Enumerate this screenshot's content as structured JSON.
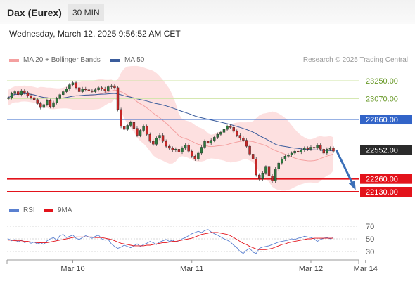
{
  "header": {
    "title": "Dax (Eurex)",
    "interval": "30 MIN"
  },
  "datetime": "Wednesday, March 12, 2025 9:56:52 AM CET",
  "copyright": "Research © 2025 Trading Central",
  "colors": {
    "bollinger_band": "#fde0e0",
    "ma20": "#f4a0a0",
    "ma50": "#3a5c9c",
    "bullish_candle": "#2d7a3e",
    "bearish_candle": "#c62828",
    "support": "#e3131b",
    "resistance_major": "#3264c8",
    "resistance_minor": "#cfe4a6",
    "arrow": "#3a6fb8",
    "rsi": "#5a80d0",
    "rsi_ma": "#e3131b"
  },
  "legend": {
    "price": [
      {
        "label": "MA 20 + Bollinger Bands",
        "color": "#f4a0a0"
      },
      {
        "label": "MA 50",
        "color": "#3a5c9c"
      }
    ],
    "rsi": [
      {
        "label": "RSI",
        "color": "#5a80d0"
      },
      {
        "label": "9MA",
        "color": "#e3131b"
      }
    ]
  },
  "chart_data": {
    "type": "candlestick",
    "ylim": [
      22060,
      23330
    ],
    "x_labels": [
      "Mar 10",
      "Mar 11",
      "Mar 12",
      "Mar 14"
    ],
    "levels": [
      {
        "value": 23250,
        "label": "23250.00",
        "kind": "resistance-minor"
      },
      {
        "value": 23070,
        "label": "23070.00",
        "kind": "resistance-minor"
      },
      {
        "value": 22860,
        "label": "22860.00",
        "kind": "resistance-major"
      },
      {
        "value": 22552,
        "label": "22552.00",
        "kind": "last-price"
      },
      {
        "value": 22260,
        "label": "22260.00",
        "kind": "support"
      },
      {
        "value": 22130,
        "label": "22130.00",
        "kind": "support"
      }
    ],
    "forecast_arrow": {
      "from": 22552,
      "to": 22130
    },
    "close": [
      23080,
      23120,
      23140,
      23110,
      23150,
      23130,
      23100,
      23080,
      23060,
      23020,
      22980,
      23010,
      23050,
      22990,
      23030,
      23070,
      23110,
      23140,
      23170,
      23210,
      23230,
      23180,
      23140,
      23170,
      23160,
      23150,
      23140,
      23160,
      23180,
      23170,
      23150,
      23190,
      23200,
      23180,
      22960,
      22790,
      22760,
      22800,
      22830,
      22770,
      22700,
      22750,
      22790,
      22710,
      22640,
      22610,
      22670,
      22700,
      22640,
      22590,
      22570,
      22550,
      22560,
      22530,
      22570,
      22600,
      22540,
      22490,
      22460,
      22520,
      22580,
      22640,
      22620,
      22650,
      22680,
      22710,
      22730,
      22760,
      22790,
      22780,
      22740,
      22700,
      22670,
      22650,
      22590,
      22510,
      22460,
      22300,
      22260,
      22320,
      22380,
      22290,
      22240,
      22360,
      22420,
      22460,
      22490,
      22500,
      22520,
      22540,
      22530,
      22550,
      22570,
      22560,
      22580,
      22570,
      22600,
      22560,
      22520,
      22560,
      22570,
      22540
    ],
    "rsi": {
      "ticks": [
        70,
        50,
        30
      ],
      "ylim": [
        20,
        80
      ],
      "values": [
        50,
        47,
        49,
        45,
        48,
        44,
        46,
        43,
        45,
        42,
        44,
        41,
        47,
        50,
        52,
        48,
        55,
        57,
        52,
        54,
        56,
        51,
        49,
        52,
        55,
        53,
        51,
        54,
        56,
        50,
        48,
        49,
        42,
        38,
        35,
        37,
        40,
        38,
        36,
        39,
        42,
        38,
        41,
        43,
        46,
        44,
        41,
        45,
        47,
        49,
        46,
        48,
        45,
        47,
        50,
        52,
        55,
        58,
        60,
        62,
        60,
        63,
        65,
        61,
        58,
        56,
        53,
        50,
        48,
        45,
        40,
        36,
        30,
        27,
        32,
        35,
        29,
        27,
        35,
        37,
        38,
        39,
        41,
        43,
        45,
        46,
        47,
        48,
        50,
        49,
        51,
        52,
        54,
        53,
        52,
        50,
        46,
        49,
        51,
        52,
        50,
        52
      ],
      "ma9": [
        48,
        48,
        47,
        47,
        47,
        46,
        46,
        45,
        45,
        44,
        44,
        44,
        44,
        45,
        46,
        47,
        48,
        49,
        50,
        51,
        52,
        53,
        53,
        53,
        53,
        53,
        53,
        52,
        52,
        52,
        51,
        50,
        49,
        47,
        45,
        43,
        42,
        41,
        40,
        39,
        39,
        39,
        39,
        40,
        40,
        41,
        42,
        43,
        44,
        44,
        45,
        46,
        46,
        47,
        48,
        49,
        50,
        51,
        53,
        55,
        57,
        58,
        59,
        60,
        60,
        60,
        59,
        58,
        57,
        55,
        52,
        49,
        46,
        43,
        41,
        38,
        36,
        34,
        33,
        33,
        33,
        34,
        35,
        37,
        39,
        41,
        42,
        44,
        45,
        46,
        47,
        48,
        49,
        50,
        50,
        51,
        51,
        51,
        51,
        51,
        51,
        51
      ]
    }
  }
}
